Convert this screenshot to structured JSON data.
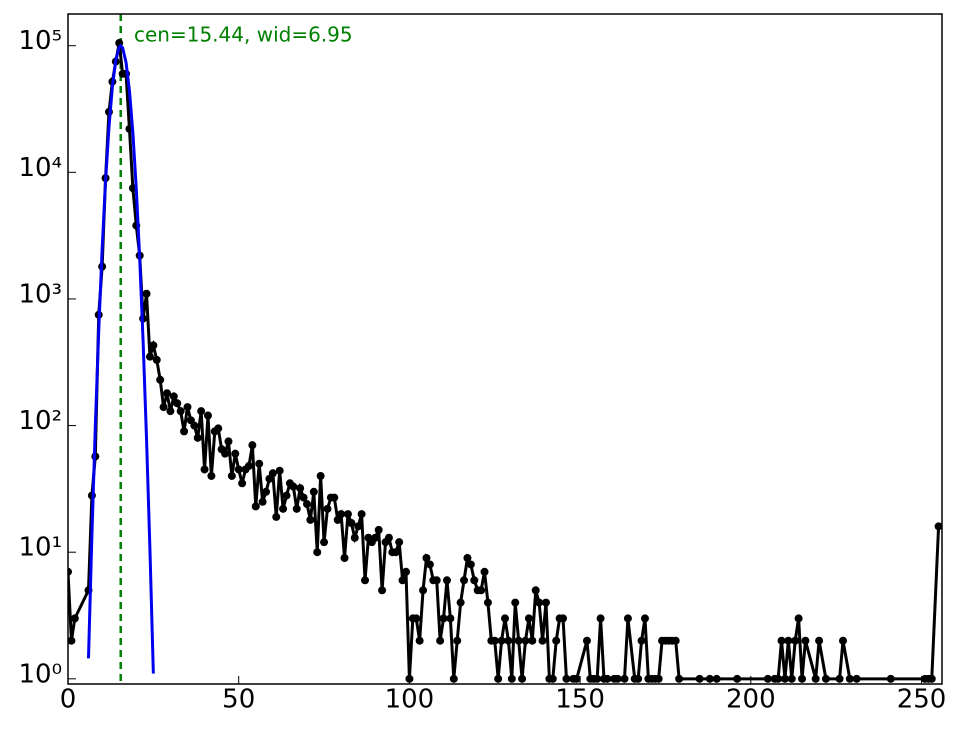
{
  "chart_data": {
    "type": "line",
    "log_y": true,
    "annotation": "cen=15.44, wid=6.95",
    "xlim": [
      0,
      256
    ],
    "xticks": [
      0,
      50,
      100,
      150,
      200,
      250
    ],
    "ylim": [
      0.91,
      178000
    ],
    "yticks": [
      {
        "value": 1,
        "label": "10⁰"
      },
      {
        "value": 10,
        "label": "10¹"
      },
      {
        "value": 100,
        "label": "10²"
      },
      {
        "value": 1000,
        "label": "10³"
      },
      {
        "value": 10000,
        "label": "10⁴"
      },
      {
        "value": 100000,
        "label": "10⁵"
      }
    ],
    "x": [
      0,
      1,
      2,
      6,
      7,
      8,
      9,
      10,
      11,
      12,
      13,
      14,
      15,
      16,
      17,
      18,
      19,
      20,
      21,
      22,
      23,
      24,
      25,
      26,
      27,
      28,
      29,
      30,
      31,
      32,
      33,
      34,
      35,
      36,
      37,
      38,
      39,
      40,
      41,
      42,
      43,
      44,
      45,
      46,
      47,
      48,
      49,
      50,
      51,
      52,
      53,
      54,
      55,
      56,
      57,
      58,
      59,
      60,
      61,
      62,
      63,
      64,
      65,
      66,
      67,
      68,
      69,
      70,
      71,
      72,
      73,
      74,
      75,
      76,
      77,
      78,
      79,
      80,
      81,
      82,
      83,
      84,
      85,
      86,
      87,
      88,
      89,
      90,
      91,
      92,
      93,
      94,
      95,
      96,
      97,
      98,
      99,
      100,
      101,
      102,
      103,
      104,
      105,
      106,
      107,
      108,
      109,
      110,
      111,
      112,
      113,
      114,
      115,
      116,
      117,
      118,
      119,
      120,
      121,
      122,
      123,
      124,
      125,
      126,
      127,
      128,
      129,
      130,
      131,
      132,
      133,
      134,
      135,
      136,
      137,
      138,
      139,
      140,
      141,
      142,
      143,
      144,
      145,
      146,
      148,
      149,
      152,
      153,
      154,
      155,
      156,
      157,
      158,
      160,
      161,
      163,
      164,
      166,
      167,
      168,
      169,
      170,
      171,
      172,
      173,
      174,
      175,
      176,
      177,
      178,
      179,
      185,
      188,
      190,
      196,
      205,
      207,
      208,
      209,
      210,
      211,
      212,
      213,
      214,
      215,
      216,
      219,
      220,
      222,
      226,
      227,
      229,
      231,
      241,
      251,
      252,
      253,
      255
    ],
    "series": [
      {
        "color": "#000000",
        "values": [
          7,
          2,
          3,
          5,
          28,
          57,
          750,
          1800,
          9000,
          30000,
          52000,
          75000,
          105000,
          60000,
          60000,
          22000,
          7500,
          3800,
          2200,
          700,
          1100,
          350,
          430,
          330,
          230,
          140,
          180,
          130,
          170,
          150,
          130,
          90,
          140,
          110,
          100,
          80,
          130,
          45,
          120,
          40,
          90,
          95,
          65,
          60,
          75,
          40,
          60,
          45,
          35,
          45,
          48,
          70,
          23,
          50,
          25,
          30,
          38,
          42,
          19,
          44,
          22,
          28,
          35,
          33,
          22,
          32,
          27,
          24,
          18,
          30,
          10,
          40,
          12,
          22,
          27,
          27,
          18,
          20,
          9,
          20,
          17,
          13,
          16,
          20,
          6,
          13,
          12,
          13,
          15,
          5,
          12,
          13,
          10,
          10,
          12,
          6,
          7,
          1,
          3,
          3,
          2,
          5,
          9,
          8,
          6,
          6,
          2,
          3,
          6,
          3,
          1,
          2,
          4,
          6,
          9,
          8,
          6,
          5,
          5,
          7,
          4,
          2,
          2,
          1,
          2,
          3,
          2,
          1,
          4,
          2,
          1,
          2,
          3,
          2,
          5,
          4,
          2,
          4,
          1,
          1,
          2,
          3,
          3,
          1,
          1,
          1,
          2,
          1,
          1,
          1,
          3,
          1,
          1,
          1,
          1,
          1,
          3,
          1,
          1,
          2,
          3,
          1,
          1,
          1,
          1,
          2,
          2,
          2,
          2,
          2,
          1,
          1,
          1,
          1,
          1,
          1,
          1,
          1,
          2,
          1,
          2,
          1,
          2,
          3,
          1,
          2,
          1,
          2,
          1,
          1,
          2,
          1,
          1,
          1,
          1,
          1,
          1,
          16
        ]
      }
    ],
    "fit": {
      "color": "#0000ee",
      "x": [
        6,
        7,
        8,
        9,
        10,
        11,
        12,
        13,
        14,
        15,
        15.44,
        16,
        17,
        18,
        19,
        20,
        21,
        22,
        23,
        24,
        25
      ],
      "values": [
        1.45,
        13.6,
        98.6,
        562,
        2470,
        8520,
        22800,
        47500,
        77200,
        97600,
        100000,
        96200,
        73800,
        44100,
        20500,
        7430,
        2100,
        461,
        79,
        10.5,
        1.1
      ]
    },
    "vline": {
      "value": 15.44,
      "color": "#008000"
    }
  }
}
